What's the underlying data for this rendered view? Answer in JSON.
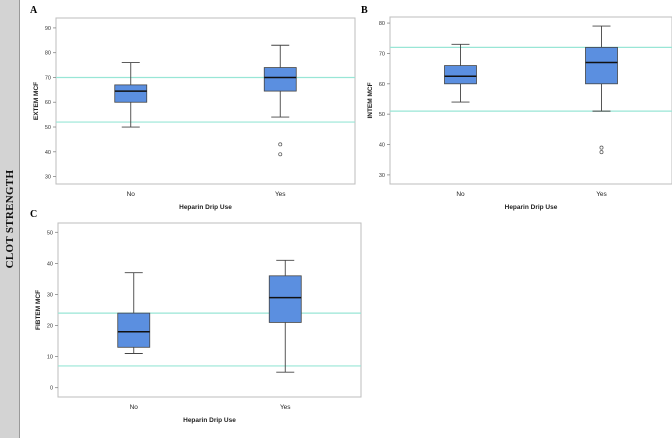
{
  "side_label": "CLOT STRENGTH",
  "colors": {
    "box_fill": "#5b8fe0",
    "box_stroke": "#444444",
    "ref_line": "#99e6d6",
    "frame": "#bdbdbd"
  },
  "chart_data": [
    {
      "panel": "A",
      "type": "box",
      "xlabel": "Heparin Drip Use",
      "ylabel": "EXTEM MCF",
      "categories": [
        "No",
        "Yes"
      ],
      "ylim": [
        27,
        94
      ],
      "yticks": [
        "30",
        "40",
        "50",
        "60",
        "70",
        "80",
        "90"
      ],
      "reference_lines": [
        70,
        52
      ],
      "boxes": [
        {
          "category": "No",
          "min": 50,
          "q1": 60,
          "median": 64.5,
          "q3": 67,
          "max": 76,
          "outliers": []
        },
        {
          "category": "Yes",
          "min": 54,
          "q1": 64.5,
          "median": 70,
          "q3": 74,
          "max": 83,
          "outliers": [
            43,
            39
          ]
        }
      ]
    },
    {
      "panel": "B",
      "type": "box",
      "xlabel": "Heparin Drip Use",
      "ylabel": "INTEM MCF",
      "categories": [
        "No",
        "Yes"
      ],
      "ylim": [
        27,
        82
      ],
      "yticks": [
        "30",
        "40",
        "50",
        "60",
        "70",
        "80"
      ],
      "reference_lines": [
        72,
        51
      ],
      "boxes": [
        {
          "category": "No",
          "min": 54,
          "q1": 60,
          "median": 62.5,
          "q3": 66,
          "max": 73,
          "outliers": []
        },
        {
          "category": "Yes",
          "min": 51,
          "q1": 60,
          "median": 67,
          "q3": 72,
          "max": 79,
          "outliers": [
            39,
            37.5
          ]
        }
      ]
    },
    {
      "panel": "C",
      "type": "box",
      "xlabel": "Heparin Drip Use",
      "ylabel": "FIBTEM MCF",
      "categories": [
        "No",
        "Yes"
      ],
      "ylim": [
        -3,
        53
      ],
      "yticks": [
        "0",
        "10",
        "20",
        "30",
        "40",
        "50"
      ],
      "reference_lines": [
        24,
        7
      ],
      "boxes": [
        {
          "category": "No",
          "min": 11,
          "q1": 13,
          "median": 18,
          "q3": 24,
          "max": 37,
          "outliers": []
        },
        {
          "category": "Yes",
          "min": 5,
          "q1": 21,
          "median": 29,
          "q3": 36,
          "max": 41,
          "outliers": []
        }
      ]
    }
  ]
}
